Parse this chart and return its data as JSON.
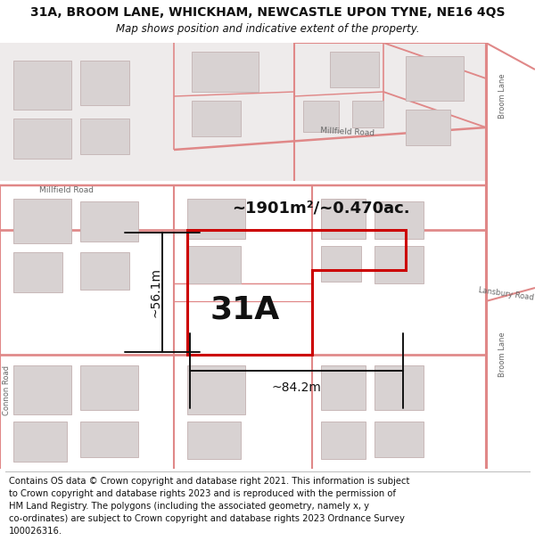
{
  "title_line1": "31A, BROOM LANE, WHICKHAM, NEWCASTLE UPON TYNE, NE16 4QS",
  "title_line2": "Map shows position and indicative extent of the property.",
  "label_31A": "31A",
  "area_label": "~1901m²/~0.470ac.",
  "width_label": "~84.2m",
  "height_label": "~56.1m",
  "footer": "Contains OS data © Crown copyright and database right 2021. This information is subject\nto Crown copyright and database rights 2023 and is reproduced with the permission of\nHM Land Registry. The polygons (including the associated geometry, namely x, y\nco-ordinates) are subject to Crown copyright and database rights 2023 Ordnance Survey\n100026316.",
  "map_bg": "#f7f2f2",
  "block_bg": "#ece6e6",
  "road_fill": "#f7f0f0",
  "road_stroke": "#e08888",
  "building_fill": "#d8d2d2",
  "building_stroke": "#c8b8b8",
  "property_color": "#cc0000",
  "dim_color": "#111111",
  "text_color": "#111111",
  "road_text_color": "#555555",
  "title_color": "#111111"
}
